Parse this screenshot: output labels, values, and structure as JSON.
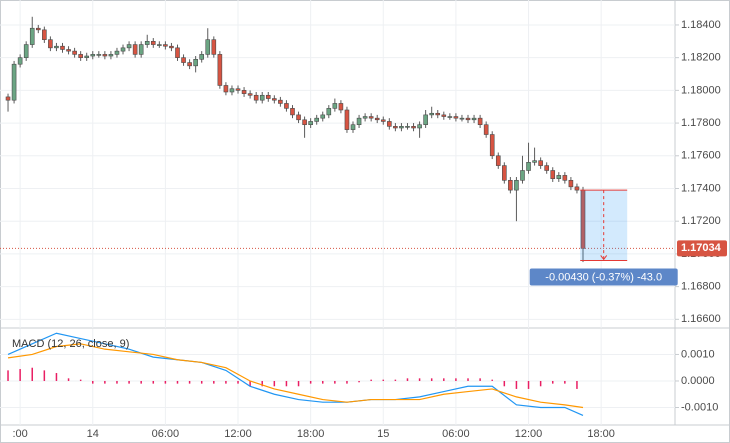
{
  "chart_data": [
    {
      "type": "candlestick",
      "x": [
        -7,
        -6.5,
        -6,
        -5.5,
        -5,
        -4.5,
        -4,
        -3.5,
        -3,
        -2.5,
        -2,
        -1.5,
        -1,
        -0.5,
        0,
        0.5,
        1,
        1.5,
        2,
        2.5,
        3,
        3.5,
        4,
        4.5,
        5,
        5.5,
        6,
        6.5,
        7,
        7.5,
        8,
        8.5,
        9,
        9.5,
        10,
        10.5,
        11,
        11.5,
        12,
        12.5,
        13,
        13.5,
        14,
        14.5,
        15,
        15.5,
        16,
        16.5,
        17,
        17.5,
        18,
        18.5,
        19,
        19.5,
        20,
        20.5,
        21,
        21.5,
        22,
        22.5,
        23,
        23.5,
        24,
        24.5,
        25,
        25.5,
        26,
        26.5,
        27,
        27.5,
        28,
        28.5,
        29,
        29.5,
        30,
        30.5,
        31,
        31.5,
        32,
        32.5,
        33,
        33.5,
        34,
        34.5,
        35,
        35.5,
        36,
        36.5,
        37,
        37.5,
        38,
        38.5,
        39,
        39.5,
        40,
        40.5
      ],
      "open": [
        1.1796,
        1.1794,
        1.1816,
        1.182,
        1.1828,
        1.1838,
        1.1837,
        1.1831,
        1.1826,
        1.1827,
        1.1825,
        1.1824,
        1.1822,
        1.182,
        1.1821,
        1.1822,
        1.1822,
        1.1821,
        1.1822,
        1.1824,
        1.1826,
        1.1828,
        1.1822,
        1.1828,
        1.183,
        1.1828,
        1.1828,
        1.1827,
        1.1826,
        1.182,
        1.1817,
        1.1815,
        1.1819,
        1.1822,
        1.1831,
        1.1822,
        1.1803,
        1.1799,
        1.1801,
        1.18,
        1.1798,
        1.1797,
        1.1794,
        1.1797,
        1.1795,
        1.1794,
        1.1792,
        1.1789,
        1.1785,
        1.1782,
        1.1779,
        1.1781,
        1.1783,
        1.1785,
        1.1789,
        1.1792,
        1.1788,
        1.1776,
        1.1779,
        1.1783,
        1.1784,
        1.1783,
        1.1782,
        1.1781,
        1.1778,
        1.1777,
        1.1778,
        1.1778,
        1.1777,
        1.1779,
        1.1785,
        1.1786,
        1.1785,
        1.1784,
        1.1784,
        1.1783,
        1.1783,
        1.1782,
        1.1783,
        1.1779,
        1.1773,
        1.176,
        1.1754,
        1.1745,
        1.1739,
        1.1745,
        1.1751,
        1.1756,
        1.1757,
        1.1754,
        1.1751,
        1.1746,
        1.1748,
        1.1745,
        1.1741,
        1.1739
      ],
      "high": [
        1.1798,
        1.1818,
        1.1822,
        1.183,
        1.1845,
        1.184,
        1.1839,
        1.1833,
        1.1829,
        1.1829,
        1.1827,
        1.1826,
        1.1824,
        1.1823,
        1.1824,
        1.1824,
        1.1824,
        1.1824,
        1.1826,
        1.1828,
        1.183,
        1.183,
        1.183,
        1.1834,
        1.1832,
        1.183,
        1.183,
        1.1829,
        1.1828,
        1.1822,
        1.1819,
        1.1821,
        1.1824,
        1.1838,
        1.1833,
        1.1824,
        1.1805,
        1.1803,
        1.1803,
        1.1802,
        1.18,
        1.1799,
        1.1799,
        1.1799,
        1.1797,
        1.1796,
        1.1794,
        1.1791,
        1.1787,
        1.1784,
        1.1783,
        1.1785,
        1.1787,
        1.1791,
        1.1795,
        1.1794,
        1.179,
        1.1781,
        1.1785,
        1.1786,
        1.1786,
        1.1785,
        1.1784,
        1.1783,
        1.178,
        1.178,
        1.178,
        1.178,
        1.1781,
        1.1788,
        1.179,
        1.1788,
        1.1787,
        1.1786,
        1.1786,
        1.1785,
        1.1785,
        1.1785,
        1.1785,
        1.1781,
        1.1775,
        1.1762,
        1.1756,
        1.1747,
        1.1747,
        1.176,
        1.1768,
        1.1765,
        1.1759,
        1.1756,
        1.1753,
        1.175,
        1.175,
        1.1747,
        1.1743,
        1.1741
      ],
      "low": [
        1.1787,
        1.1792,
        1.1814,
        1.1818,
        1.1826,
        1.1835,
        1.1829,
        1.1824,
        1.1824,
        1.1823,
        1.1822,
        1.182,
        1.1818,
        1.1818,
        1.1819,
        1.182,
        1.1819,
        1.1819,
        1.182,
        1.1822,
        1.1824,
        1.182,
        1.182,
        1.1826,
        1.1826,
        1.1826,
        1.1825,
        1.1824,
        1.1818,
        1.1815,
        1.1813,
        1.1811,
        1.1817,
        1.182,
        1.182,
        1.1801,
        1.1797,
        1.1797,
        1.1798,
        1.1796,
        1.1795,
        1.1792,
        1.1792,
        1.1793,
        1.1792,
        1.179,
        1.1787,
        1.1783,
        1.178,
        1.1771,
        1.1777,
        1.1779,
        1.1781,
        1.1783,
        1.1787,
        1.1786,
        1.1774,
        1.1774,
        1.1777,
        1.1781,
        1.1781,
        1.178,
        1.1779,
        1.1776,
        1.1775,
        1.1775,
        1.1776,
        1.1775,
        1.1771,
        1.1777,
        1.1783,
        1.1783,
        1.1782,
        1.1782,
        1.1781,
        1.1781,
        1.178,
        1.178,
        1.1777,
        1.1771,
        1.1758,
        1.1752,
        1.1743,
        1.1737,
        1.172,
        1.1743,
        1.1749,
        1.1754,
        1.1752,
        1.1749,
        1.1744,
        1.1744,
        1.1743,
        1.1739,
        1.1737,
        1.1695
      ],
      "close": [
        1.1794,
        1.1816,
        1.182,
        1.1828,
        1.1838,
        1.1837,
        1.1831,
        1.1826,
        1.1827,
        1.1825,
        1.1824,
        1.1822,
        1.182,
        1.1821,
        1.1822,
        1.1822,
        1.1821,
        1.1822,
        1.1824,
        1.1826,
        1.1828,
        1.1822,
        1.1828,
        1.183,
        1.1828,
        1.1828,
        1.1827,
        1.1826,
        1.182,
        1.1817,
        1.1815,
        1.1819,
        1.1822,
        1.1831,
        1.1822,
        1.1803,
        1.1799,
        1.1801,
        1.18,
        1.1798,
        1.1797,
        1.1794,
        1.1797,
        1.1795,
        1.1794,
        1.1792,
        1.1789,
        1.1785,
        1.1782,
        1.1779,
        1.1781,
        1.1783,
        1.1785,
        1.1789,
        1.1792,
        1.1788,
        1.1776,
        1.1779,
        1.1783,
        1.1784,
        1.1783,
        1.1782,
        1.1781,
        1.1778,
        1.1777,
        1.1778,
        1.1778,
        1.1777,
        1.1779,
        1.1785,
        1.1786,
        1.1785,
        1.1784,
        1.1784,
        1.1783,
        1.1783,
        1.1782,
        1.1783,
        1.1779,
        1.1773,
        1.176,
        1.1754,
        1.1745,
        1.1739,
        1.1745,
        1.1751,
        1.1756,
        1.1757,
        1.1754,
        1.1751,
        1.1746,
        1.1748,
        1.1745,
        1.1741,
        1.1739,
        1.17034
      ],
      "up_color": "#6ba583",
      "down_color": "#d75442",
      "xlim": [
        -7.25,
        48.1
      ],
      "ylim": [
        1.16553,
        1.18522
      ],
      "yticks": [
        {
          "value": 1.184,
          "label": "1.18400"
        },
        {
          "value": 1.182,
          "label": "1.18200"
        },
        {
          "value": 1.18,
          "label": "1.18000"
        },
        {
          "value": 1.178,
          "label": "1.17800"
        },
        {
          "value": 1.176,
          "label": "1.17600"
        },
        {
          "value": 1.174,
          "label": "1.17400"
        },
        {
          "value": 1.172,
          "label": "1.17200"
        },
        {
          "value": 1.17,
          "label": "1.17000"
        },
        {
          "value": 1.168,
          "label": "1.16800"
        },
        {
          "value": 1.166,
          "label": "1.16600"
        }
      ],
      "grid": true,
      "last_price": {
        "value": 1.17034,
        "label": "1.17034",
        "color": "#d75442"
      },
      "measure": {
        "from": 1.1739,
        "to": 1.1696,
        "x_from": 40.27,
        "x_to": 44.15,
        "label": "-0.00430 (-0.37%) -43.0",
        "color": "#2196f3",
        "line_color": "#e53935"
      }
    },
    {
      "type": "macd",
      "title": "MACD (12, 26, close, 9)",
      "xlim": [
        -7.25,
        48.1
      ],
      "xticks": [
        {
          "value": -6,
          "label": ":00"
        },
        {
          "value": 0,
          "label": "14"
        },
        {
          "value": 6,
          "label": "06:00"
        },
        {
          "value": 12,
          "label": "12:00"
        },
        {
          "value": 18,
          "label": "18:00"
        },
        {
          "value": 24,
          "label": "15"
        },
        {
          "value": 30,
          "label": "06:00"
        },
        {
          "value": 36,
          "label": "12:00"
        },
        {
          "value": 42,
          "label": "18:00"
        }
      ],
      "ylim": [
        -0.00166,
        0.00196
      ],
      "yticks": [
        {
          "value": 0.001,
          "label": "0.0010"
        },
        {
          "value": 0,
          "label": "0.0000"
        },
        {
          "value": -0.001,
          "label": "-0.0010"
        }
      ],
      "grid": true,
      "series": [
        {
          "color": "#2196f3",
          "x": [
            -7,
            -5,
            -3,
            -1,
            1,
            3,
            5,
            7,
            9,
            11,
            13,
            15,
            17,
            19,
            21,
            23,
            25,
            27,
            29,
            31,
            33,
            35,
            37,
            39,
            40.5
          ],
          "values": [
            0.001,
            0.0014,
            0.0018,
            0.0016,
            0.0014,
            0.0012,
            0.0009,
            0.0008,
            0.0007,
            0.0004,
            -0.0002,
            -0.0005,
            -0.0007,
            -0.0008,
            -0.0008,
            -0.0007,
            -0.0007,
            -0.0006,
            -0.0004,
            -0.0002,
            -0.0002,
            -0.0009,
            -0.001,
            -0.001,
            -0.0013
          ]
        },
        {
          "color": "#ff9800",
          "x": [
            -7,
            -5,
            -3,
            -1,
            1,
            3,
            5,
            7,
            9,
            11,
            13,
            15,
            17,
            19,
            21,
            23,
            25,
            27,
            29,
            31,
            33,
            35,
            37,
            39,
            40.5
          ],
          "values": [
            0.00087,
            0.001,
            0.0013,
            0.0014,
            0.0012,
            0.0011,
            0.001,
            0.0008,
            0.0007,
            0.0005,
            0.0,
            -0.0003,
            -0.0005,
            -0.0007,
            -0.0008,
            -0.0007,
            -0.0007,
            -0.0007,
            -0.0005,
            -0.0004,
            -0.0003,
            -0.0006,
            -0.0008,
            -0.0009,
            -0.001
          ]
        }
      ],
      "bars": {
        "color": "#e91e63",
        "x": [
          -7,
          -6,
          -5,
          -4,
          -3,
          -2,
          -1,
          0,
          1,
          2,
          3,
          4,
          5,
          6,
          7,
          8,
          9,
          10,
          11,
          12,
          13,
          14,
          15,
          16,
          17,
          18,
          19,
          20,
          21,
          22,
          23,
          24,
          25,
          26,
          27,
          28,
          29,
          30,
          31,
          32,
          33,
          34,
          35,
          36,
          37,
          38,
          39,
          40
        ],
        "values": [
          0.0004,
          0.00045,
          0.0005,
          0.0004,
          0.0003,
          0.0001,
          5e-05,
          -0.0001,
          -0.0001,
          -0.0001,
          -0.0001,
          -0.0001,
          -0.0001,
          -0.0001,
          -0.0001,
          -0.0001,
          -0.0001,
          -0.0001,
          -0.0001,
          -0.0001,
          -0.0002,
          -0.0002,
          -0.0002,
          -0.0002,
          -0.0002,
          -0.0001,
          -0.0001,
          -0.0001,
          -0.0001,
          -5e-05,
          5e-05,
          5e-05,
          5e-05,
          0.0001,
          0.0001,
          0.0001,
          0.0001,
          0.0001,
          0.0001,
          0.0001,
          5e-05,
          -0.0002,
          -0.0003,
          -0.0003,
          -0.0002,
          -0.0001,
          -0.0001,
          -0.0003
        ]
      }
    }
  ]
}
